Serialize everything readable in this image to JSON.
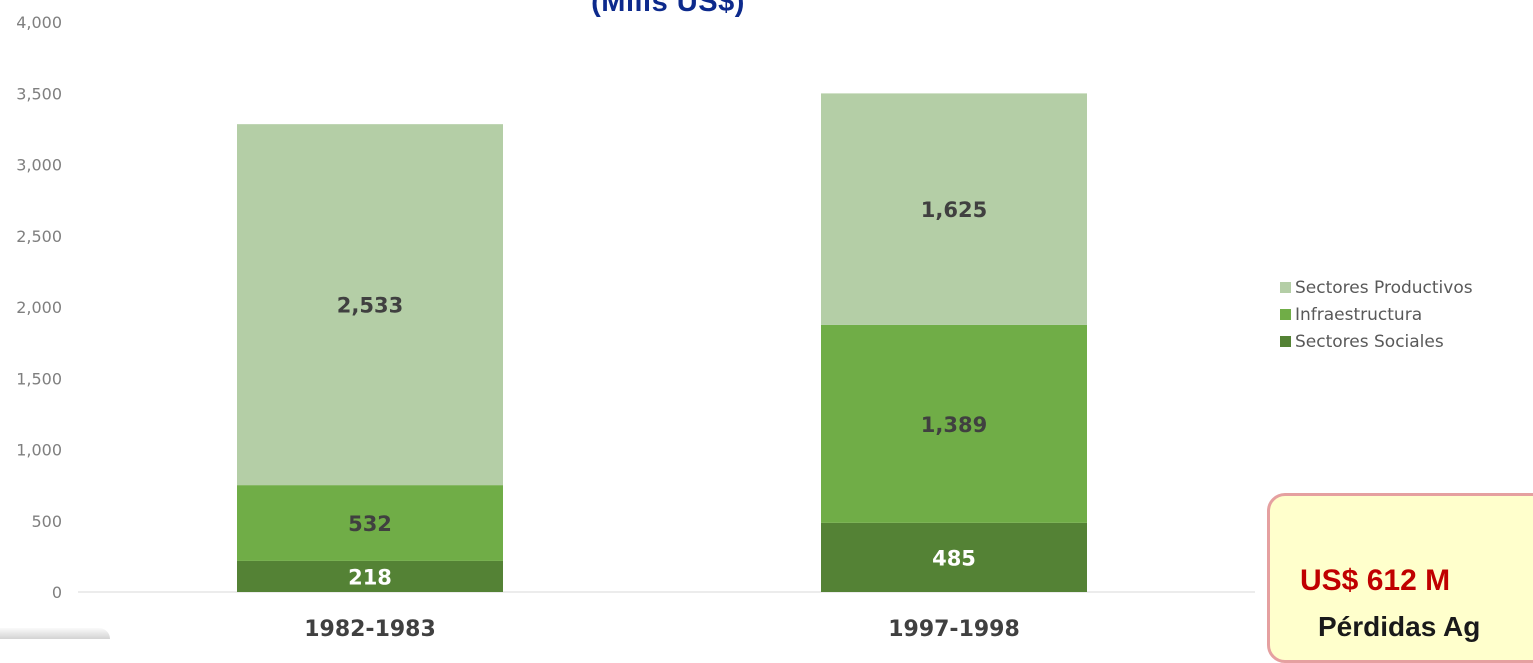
{
  "chart_data": {
    "type": "bar",
    "stacked": true,
    "title": "",
    "subtitle": "(Mills US$)",
    "xlabel": "",
    "ylabel": "",
    "ylim": [
      0,
      4000
    ],
    "yticks": [
      "0",
      "500",
      "1,000",
      "1,500",
      "2,000",
      "2,500",
      "3,000",
      "3,500",
      "4,000"
    ],
    "ytick_values": [
      0,
      500,
      1000,
      1500,
      2000,
      2500,
      3000,
      3500,
      4000
    ],
    "categories": [
      "1982-1983",
      "1997-1998"
    ],
    "series": [
      {
        "name": "Sectores Sociales",
        "values": [
          218,
          485
        ],
        "labels": [
          "218",
          "485"
        ],
        "color": "#548235",
        "label_color": "#ffffff"
      },
      {
        "name": "Infraestructura",
        "values": [
          532,
          1389
        ],
        "labels": [
          "532",
          "1,389"
        ],
        "color": "#70ad47",
        "label_color": "#404040"
      },
      {
        "name": "Sectores Productivos",
        "values": [
          2533,
          1625
        ],
        "labels": [
          "2,533",
          "1,625"
        ],
        "color": "#b4cea6",
        "label_color": "#404040"
      }
    ],
    "legend": {
      "position": "right",
      "items": [
        {
          "label": "Sectores Productivos",
          "color": "#b4cea6"
        },
        {
          "label": "Infraestructura",
          "color": "#70ad47"
        },
        {
          "label": "Sectores Sociales",
          "color": "#548235"
        }
      ]
    },
    "grid": false
  },
  "callout": {
    "line1": "US$ 612 M",
    "line2": "Pérdidas Ag"
  }
}
